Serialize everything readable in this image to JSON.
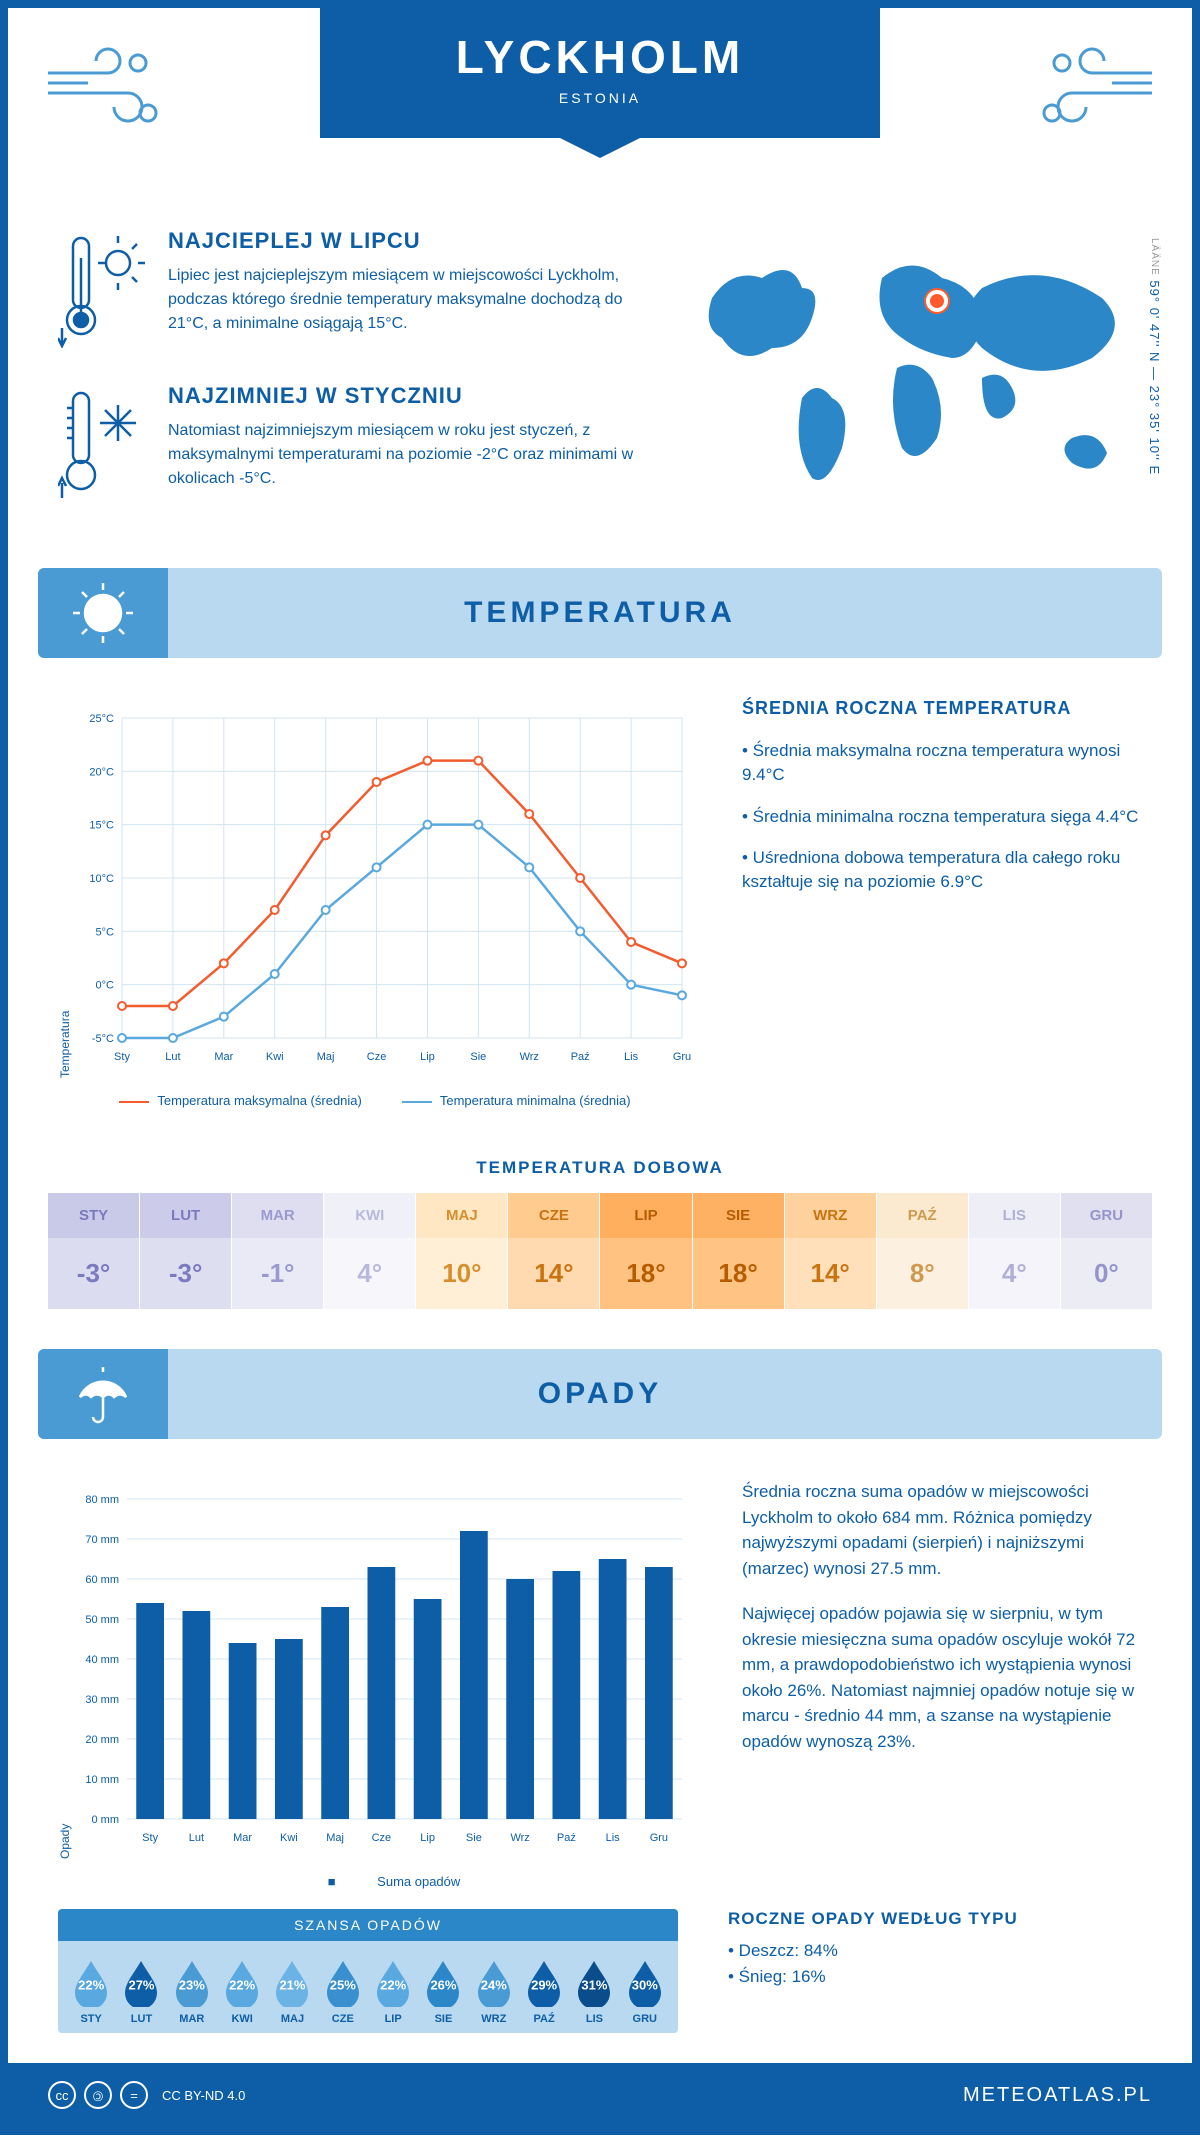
{
  "header": {
    "title": "LYCKHOLM",
    "subtitle": "ESTONIA",
    "coords": "59° 0' 47'' N — 23° 35' 10'' E",
    "region": "LÄÄNE"
  },
  "intro": {
    "warm": {
      "title": "NAJCIEPLEJ W LIPCU",
      "text": "Lipiec jest najcieplejszym miesiącem w miejscowości Lyckholm, podczas którego średnie temperatury maksymalne dochodzą do 21°C, a minimalne osiągają 15°C."
    },
    "cold": {
      "title": "NAJZIMNIEJ W STYCZNIU",
      "text": "Natomiast najzimniejszym miesiącem w roku jest styczeń, z maksymalnymi temperaturami na poziomie -2°C oraz minimami w okolicach -5°C."
    }
  },
  "sections": {
    "temp": "TEMPERATURA",
    "opady": "OPADY"
  },
  "temp_chart": {
    "type": "line",
    "months": [
      "Sty",
      "Lut",
      "Mar",
      "Kwi",
      "Maj",
      "Cze",
      "Lip",
      "Sie",
      "Wrz",
      "Paź",
      "Lis",
      "Gru"
    ],
    "max_values": [
      -2,
      -2,
      2,
      7,
      14,
      19,
      21,
      21,
      16,
      10,
      4,
      2
    ],
    "min_values": [
      -5,
      -5,
      -3,
      1,
      7,
      11,
      15,
      15,
      11,
      5,
      0,
      -1
    ],
    "max_color": "#f25c2e",
    "min_color": "#5aa8e0",
    "ylim": [
      -5,
      25
    ],
    "ytick_step": 5,
    "ylabel": "Temperatura",
    "grid_color": "#d0e4f2",
    "background": "#ffffff",
    "line_width": 2.5,
    "marker": "circle",
    "legend_max": "Temperatura maksymalna (średnia)",
    "legend_min": "Temperatura minimalna (średnia)"
  },
  "temp_info": {
    "title": "ŚREDNIA ROCZNA TEMPERATURA",
    "bullets": [
      "Średnia maksymalna roczna temperatura wynosi 9.4°C",
      "Średnia minimalna roczna temperatura sięga 4.4°C",
      "Uśredniona dobowa temperatura dla całego roku kształtuje się na poziomie 6.9°C"
    ]
  },
  "dobowa": {
    "title": "TEMPERATURA DOBOWA",
    "months": [
      "STY",
      "LUT",
      "MAR",
      "KWI",
      "MAJ",
      "CZE",
      "LIP",
      "SIE",
      "WRZ",
      "PAŹ",
      "LIS",
      "GRU"
    ],
    "values": [
      "-3°",
      "-3°",
      "-1°",
      "4°",
      "10°",
      "14°",
      "18°",
      "18°",
      "14°",
      "8°",
      "4°",
      "0°"
    ],
    "colors_head": [
      "#c9c9e8",
      "#ccccea",
      "#dedef0",
      "#f0f0f8",
      "#ffe7c4",
      "#ffcb8f",
      "#ffaf5e",
      "#ffb163",
      "#ffd29d",
      "#fbe9d0",
      "#eeeef6",
      "#e0e0f0"
    ],
    "colors_body": [
      "#dcdcf0",
      "#dedef1",
      "#eaeaf6",
      "#f6f6fb",
      "#ffefd7",
      "#ffdab0",
      "#ffc280",
      "#ffc384",
      "#ffe0ba",
      "#fcf0e1",
      "#f4f4fa",
      "#ececf5"
    ],
    "text_colors": [
      "#7a7abf",
      "#7a7abf",
      "#9a9ad0",
      "#b8b8dc",
      "#d68f2c",
      "#c97410",
      "#b85c00",
      "#b85c00",
      "#c97410",
      "#cf9a50",
      "#b0b0d6",
      "#9595cc"
    ]
  },
  "opady_chart": {
    "type": "bar",
    "months": [
      "Sty",
      "Lut",
      "Mar",
      "Kwi",
      "Maj",
      "Cze",
      "Lip",
      "Sie",
      "Wrz",
      "Paź",
      "Lis",
      "Gru"
    ],
    "values": [
      54,
      52,
      44,
      45,
      53,
      63,
      55,
      72,
      60,
      62,
      65,
      63
    ],
    "bar_color": "#0d5ea6",
    "ylim": [
      0,
      80
    ],
    "ytick_step": 10,
    "ylabel": "Opady",
    "grid_color": "#d0e4f2",
    "bar_width": 0.6,
    "legend": "Suma opadów"
  },
  "opady_info": {
    "p1": "Średnia roczna suma opadów w miejscowości Lyckholm to około 684 mm. Różnica pomiędzy najwyższymi opadami (sierpień) i najniższymi (marzec) wynosi 27.5 mm.",
    "p2": "Najwięcej opadów pojawia się w sierpniu, w tym okresie miesięczna suma opadów oscyluje wokół 72 mm, a prawdopodobieństwo ich wystąpienia wynosi około 26%. Natomiast najmniej opadów notuje się w marcu - średnio 44 mm, a szanse na wystąpienie opadów wynoszą 23%."
  },
  "szansa": {
    "title": "SZANSA OPADÓW",
    "months": [
      "STY",
      "LUT",
      "MAR",
      "KWI",
      "MAJ",
      "CZE",
      "LIP",
      "SIE",
      "WRZ",
      "PAŹ",
      "LIS",
      "GRU"
    ],
    "values": [
      "22%",
      "27%",
      "23%",
      "22%",
      "21%",
      "25%",
      "22%",
      "26%",
      "24%",
      "29%",
      "31%",
      "30%"
    ],
    "colors": [
      "#5aa8e0",
      "#0d5ea6",
      "#4a9bd4",
      "#5aa8e0",
      "#6bb2e5",
      "#3a8fcf",
      "#5aa8e0",
      "#2c87c8",
      "#4a9bd4",
      "#0d5ea6",
      "#0a4d8a",
      "#0d5ea6"
    ]
  },
  "type": {
    "title": "ROCZNE OPADY WEDŁUG TYPU",
    "items": [
      "Deszcz: 84%",
      "Śnieg: 16%"
    ]
  },
  "footer": {
    "license": "CC BY-ND 4.0",
    "brand": "METEOATLAS.PL"
  }
}
